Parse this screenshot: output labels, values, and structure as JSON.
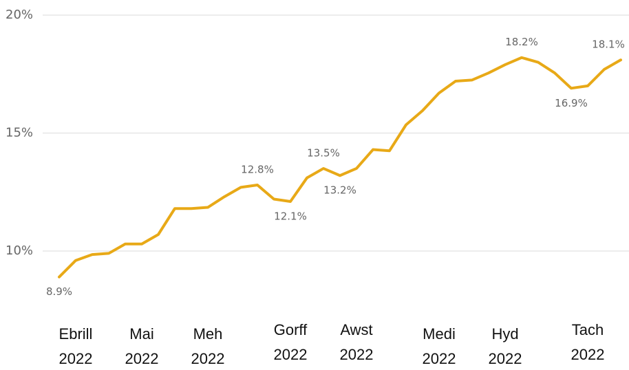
{
  "chart_data": {
    "type": "line",
    "categories": [
      null,
      "Ebrill 2022",
      null,
      null,
      null,
      "Mai 2022",
      null,
      null,
      null,
      "Meh 2022",
      null,
      null,
      null,
      null,
      "Gorff 2022",
      null,
      null,
      null,
      "Awst 2022",
      null,
      null,
      null,
      null,
      "Medi 2022",
      null,
      null,
      null,
      "Hyd 2022",
      null,
      null,
      null,
      null,
      "Tach 2022",
      null,
      null
    ],
    "series": [
      {
        "name": null,
        "color": "#e8a917",
        "values": [
          8.9,
          9.6,
          9.85,
          9.9,
          10.3,
          10.3,
          10.7,
          11.8,
          11.8,
          11.85,
          12.3,
          12.7,
          12.8,
          12.2,
          12.1,
          13.1,
          13.5,
          13.2,
          13.5,
          14.3,
          14.25,
          15.35,
          15.95,
          16.7,
          17.2,
          17.25,
          17.55,
          17.9,
          18.2,
          18.0,
          17.55,
          16.9,
          17.0,
          17.7,
          18.1
        ],
        "value_labels": [
          "8.9%",
          null,
          null,
          null,
          null,
          null,
          null,
          null,
          null,
          null,
          null,
          null,
          "12.8%",
          null,
          "12.1%",
          null,
          "13.5%",
          "13.2%",
          null,
          null,
          null,
          null,
          null,
          null,
          null,
          null,
          null,
          null,
          "18.2%",
          null,
          null,
          "16.9%",
          null,
          null,
          "18.1%"
        ]
      }
    ],
    "ylim": [
      8,
      20
    ],
    "yticks": [
      {
        "value": 10,
        "label": "10%"
      },
      {
        "value": 15,
        "label": "15%"
      },
      {
        "value": 20,
        "label": "20%"
      }
    ],
    "grid": true
  }
}
